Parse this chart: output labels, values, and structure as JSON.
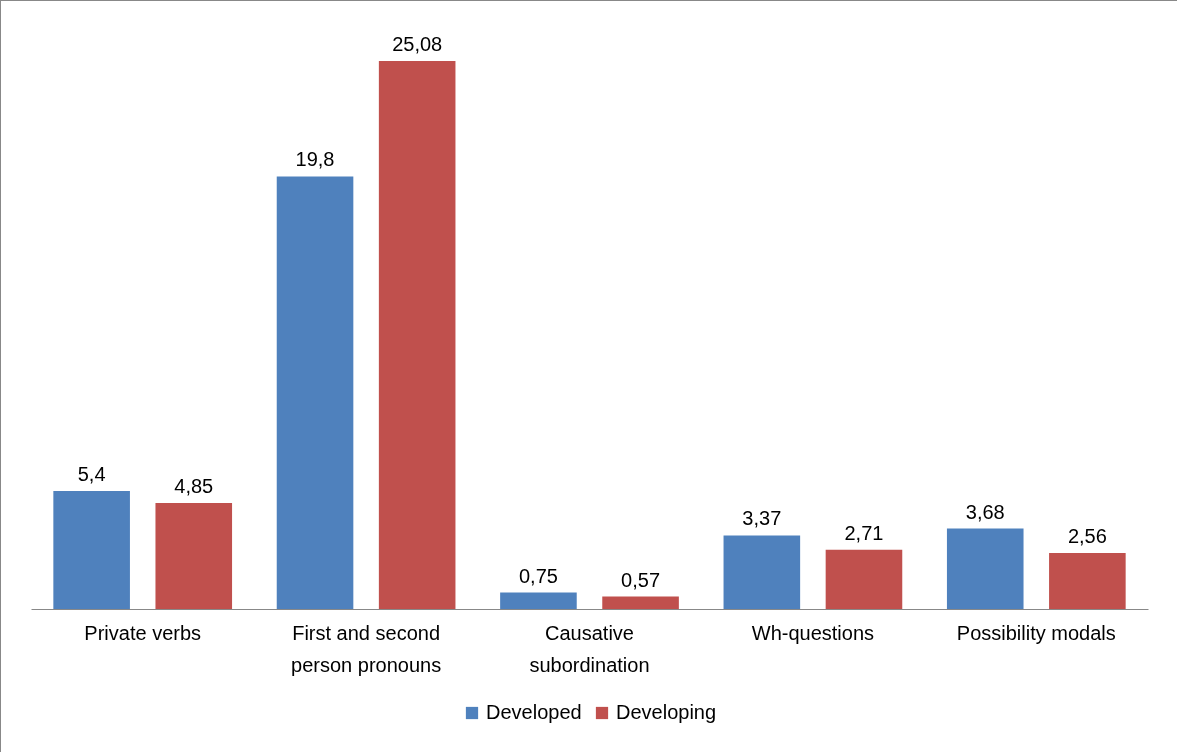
{
  "chart_data": {
    "type": "bar",
    "categories": [
      "Private verbs",
      "First and second person pronouns",
      "Causative subordination",
      "Wh-questions",
      "Possibility modals"
    ],
    "series": [
      {
        "name": "Developed",
        "color": "#4f81bd",
        "values": [
          5.4,
          19.8,
          0.75,
          3.37,
          3.68
        ],
        "value_labels": [
          "5,4",
          "19,8",
          "0,75",
          "3,37",
          "3,68"
        ]
      },
      {
        "name": "Developing",
        "color": "#c0504d",
        "values": [
          4.85,
          25.08,
          0.57,
          2.71,
          2.56
        ],
        "value_labels": [
          "4,85",
          "25,08",
          "0,57",
          "2,71",
          "2,56"
        ]
      }
    ],
    "legend": "bottom"
  }
}
